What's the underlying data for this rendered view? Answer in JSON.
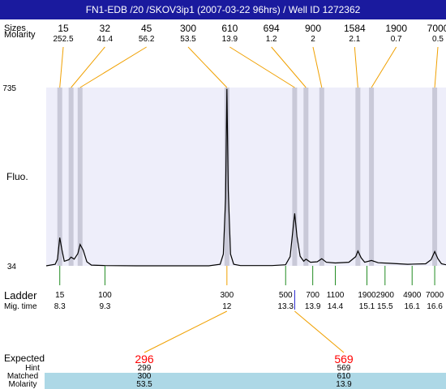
{
  "header": {
    "title": "FN1-EDB /20 /SKOV3ip1 (2007-03-22 96hrs) / Well ID 1272362"
  },
  "colors": {
    "header_bg": "#1a1a9e",
    "plot_bg": "#eeeefa",
    "band": "#c9c9d8",
    "orange": "#f0a000",
    "green": "#228b22",
    "red": "#ff0000",
    "blue": "#2222cc",
    "matched_bg": "#add8e6"
  },
  "labels": {
    "sizes": "Sizes",
    "molarity_top": "Molarity",
    "fluo": "Fluo.",
    "ladder": "Ladder",
    "mig_time": "Mig. time",
    "expected": "Expected",
    "hint": "Hint",
    "matched": "Matched",
    "molarity_bottom": "Molarity"
  },
  "chart_data": {
    "type": "line",
    "ylabel": "Fluo.",
    "ylim": [
      34,
      735
    ],
    "y_ticks": [
      "735",
      "34"
    ],
    "top_peaks": [
      {
        "size": "15",
        "molarity": "252.5",
        "mig_time": 8.3
      },
      {
        "size": "32",
        "molarity": "41.4",
        "mig_time": 8.55
      },
      {
        "size": "45",
        "molarity": "56.2",
        "mig_time": 8.75
      },
      {
        "size": "300",
        "molarity": "53.5",
        "mig_time": 12.0
      },
      {
        "size": "610",
        "molarity": "13.9",
        "mig_time": 13.5
      },
      {
        "size": "694",
        "molarity": "1.2",
        "mig_time": 13.75
      },
      {
        "size": "900",
        "molarity": "2",
        "mig_time": 14.1
      },
      {
        "size": "1584",
        "molarity": "2.1",
        "mig_time": 14.9
      },
      {
        "size": "1900",
        "molarity": "0.7",
        "mig_time": 15.2
      },
      {
        "size": "7000",
        "molarity": "0.5",
        "mig_time": 16.6
      }
    ],
    "ladder": [
      {
        "size": "15",
        "mig_time": "8.3"
      },
      {
        "size": "100",
        "mig_time": "9.3"
      },
      {
        "size": "300",
        "mig_time": "12"
      },
      {
        "size": "500",
        "mig_time": "13.3"
      },
      {
        "size": "700",
        "mig_time": "13.9"
      },
      {
        "size": "1100",
        "mig_time": "14.4"
      },
      {
        "size": "1900",
        "mig_time": "15.1"
      },
      {
        "size": "2900",
        "mig_time": "15.5"
      },
      {
        "size": "4900",
        "mig_time": "16.1"
      },
      {
        "size": "7000",
        "mig_time": "16.6"
      }
    ],
    "trace": [
      [
        8.0,
        34
      ],
      [
        8.2,
        40
      ],
      [
        8.25,
        60
      ],
      [
        8.3,
        145
      ],
      [
        8.35,
        95
      ],
      [
        8.4,
        52
      ],
      [
        8.5,
        58
      ],
      [
        8.55,
        68
      ],
      [
        8.62,
        60
      ],
      [
        8.7,
        82
      ],
      [
        8.75,
        118
      ],
      [
        8.82,
        95
      ],
      [
        8.9,
        50
      ],
      [
        9.0,
        37
      ],
      [
        9.3,
        35
      ],
      [
        10.0,
        34
      ],
      [
        11.0,
        34
      ],
      [
        11.6,
        34
      ],
      [
        11.85,
        40
      ],
      [
        11.92,
        80
      ],
      [
        11.97,
        300
      ],
      [
        12.0,
        730
      ],
      [
        12.03,
        330
      ],
      [
        12.08,
        80
      ],
      [
        12.15,
        40
      ],
      [
        12.3,
        35
      ],
      [
        13.0,
        35
      ],
      [
        13.3,
        38
      ],
      [
        13.4,
        70
      ],
      [
        13.47,
        190
      ],
      [
        13.5,
        240
      ],
      [
        13.55,
        150
      ],
      [
        13.62,
        72
      ],
      [
        13.7,
        52
      ],
      [
        13.75,
        60
      ],
      [
        13.85,
        48
      ],
      [
        14.0,
        50
      ],
      [
        14.1,
        62
      ],
      [
        14.2,
        48
      ],
      [
        14.4,
        45
      ],
      [
        14.7,
        48
      ],
      [
        14.85,
        70
      ],
      [
        14.9,
        92
      ],
      [
        14.97,
        66
      ],
      [
        15.05,
        48
      ],
      [
        15.2,
        55
      ],
      [
        15.35,
        46
      ],
      [
        15.6,
        44
      ],
      [
        16.0,
        40
      ],
      [
        16.4,
        42
      ],
      [
        16.52,
        58
      ],
      [
        16.6,
        90
      ],
      [
        16.67,
        62
      ],
      [
        16.75,
        42
      ],
      [
        16.85,
        38
      ]
    ],
    "expected": [
      {
        "value": "296",
        "hint": "299",
        "matched": "300",
        "molarity": "53.5",
        "mig_time": 12.0
      },
      {
        "value": "569",
        "hint": "569",
        "matched": "610",
        "molarity": "13.9",
        "mig_time": 13.5
      }
    ]
  }
}
